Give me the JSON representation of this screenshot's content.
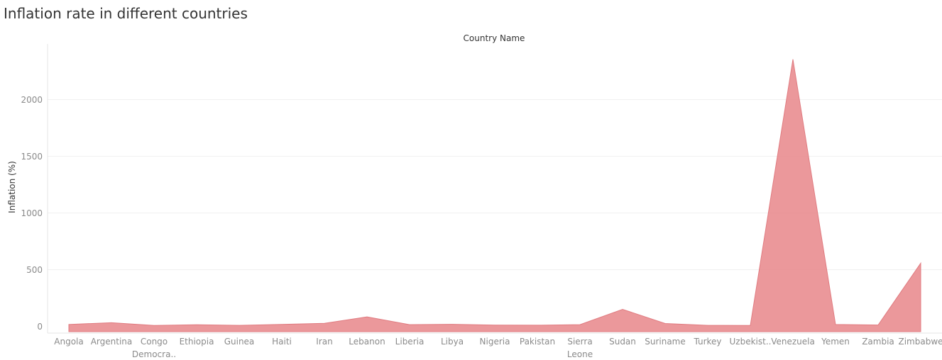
{
  "chart_data": {
    "type": "area",
    "title": "Inflation rate in different countries",
    "xlabel": "Country Name",
    "ylabel": "Inflation (%)",
    "categories": [
      [
        "Angola"
      ],
      [
        "Argentina"
      ],
      [
        "Congo",
        "Democra.."
      ],
      [
        "Ethiopia"
      ],
      [
        "Guinea"
      ],
      [
        "Haiti"
      ],
      [
        "Iran"
      ],
      [
        "Lebanon"
      ],
      [
        "Liberia"
      ],
      [
        "Libya"
      ],
      [
        "Nigeria"
      ],
      [
        "Pakistan"
      ],
      [
        "Sierra",
        "Leone"
      ],
      [
        "Sudan"
      ],
      [
        "Suriname"
      ],
      [
        "Turkey"
      ],
      [
        "Uzbekist.."
      ],
      [
        "Venezuela"
      ],
      [
        "Yemen"
      ],
      [
        "Zambia"
      ],
      [
        "Zimbabwe"
      ]
    ],
    "values": [
      17,
      32,
      8,
      14,
      9,
      17,
      26,
      84,
      15,
      18,
      11,
      10,
      15,
      150,
      25,
      9,
      8,
      2355,
      16,
      12,
      557
    ],
    "yticks": [
      0,
      500,
      1000,
      1500,
      2000
    ],
    "ylim": [
      -40,
      2440
    ],
    "grid": true,
    "colors": {
      "fill": "#e8868a",
      "stroke": "#e07b80",
      "grid": "#f0f0f0",
      "axis": "#e6e6e6"
    }
  }
}
